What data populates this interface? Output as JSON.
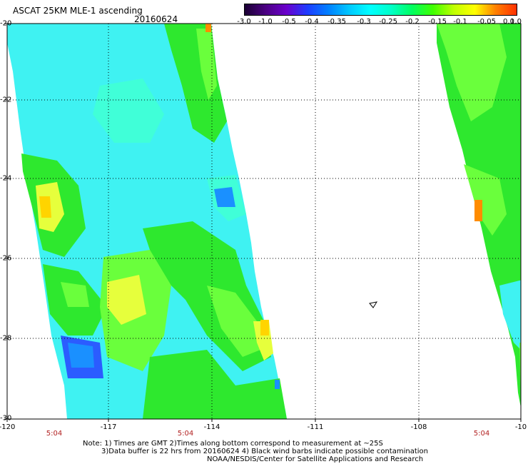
{
  "header": {
    "title": "ASCAT 25KM MLE-1 ascending",
    "date": "20160624"
  },
  "colorbar": {
    "labels": [
      "-3.0",
      "-1.0",
      "-0.5",
      "-0.4",
      "-0.35",
      "-0.3",
      "-0.25",
      "-0.2",
      "-0.15",
      "-0.1",
      "-0.05",
      "0.0",
      "1.0"
    ],
    "colors": [
      "#1a0033",
      "#4b0082",
      "#6a00cc",
      "#1e3cff",
      "#0080ff",
      "#00c8ff",
      "#00ffff",
      "#00ffc8",
      "#00ff60",
      "#40ff00",
      "#c0ff00",
      "#ffff00",
      "#ff8000",
      "#ff3000"
    ]
  },
  "map": {
    "lon_labels": [
      "-120",
      "-117",
      "-114",
      "-111",
      "-108",
      "-10"
    ],
    "lat_labels": [
      "-20",
      "-22",
      "-24",
      "-26",
      "-28",
      "-30"
    ],
    "time_labels": [
      "5:04",
      "5:04",
      "5:04"
    ],
    "colors": {
      "cyan": "#3ff2f2",
      "lightcyan": "#40ffd8",
      "green": "#2ee82e",
      "lime": "#6aff3c",
      "yellow": "#e6ff3c",
      "gold": "#ffd400",
      "orange": "#ff8c00",
      "blue": "#1a90ff",
      "deepblue": "#2b5cff"
    }
  },
  "notes": {
    "line1": "Note: 1) Times are GMT 2)Times along bottom correspond to measurement at ~25S",
    "line2": "3)Data buffer is 22 hrs from 20160624 4) Black wind barbs indicate possible contamination",
    "line3": "NOAA/NESDIS/Center for Satellite Applications and Research"
  }
}
